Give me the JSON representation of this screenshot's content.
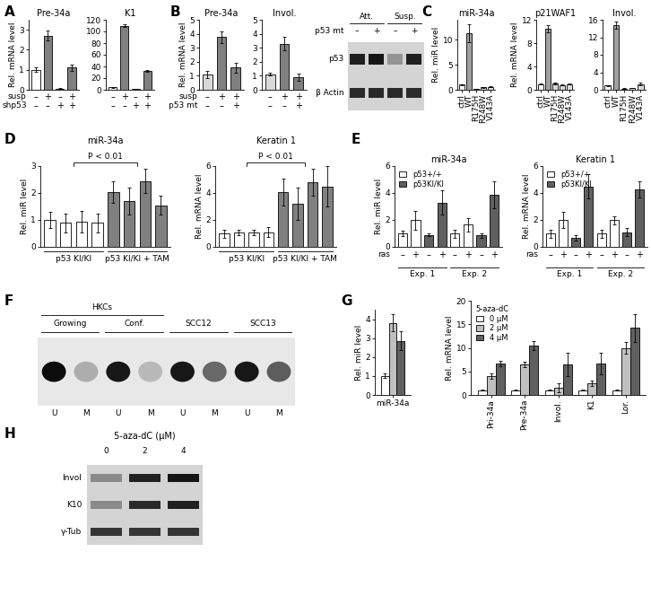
{
  "chart_data": [
    {
      "type": "bar",
      "panel": "A",
      "title": "Pre-34a",
      "ylabel": "Rel. mRNA level",
      "categories": [
        null,
        null,
        null,
        null
      ],
      "values": [
        1.0,
        2.7,
        0.05,
        1.1
      ],
      "errors": [
        0.1,
        0.25,
        0.02,
        0.15
      ],
      "colors": [
        "#ffffff",
        "#808080",
        "#ffffff",
        "#808080"
      ],
      "ylim": [
        0,
        3.5
      ],
      "yticks": [
        0,
        1,
        2,
        3
      ],
      "rows": [
        {
          "label": "susp",
          "signs": [
            "–",
            "+",
            "–",
            "+"
          ]
        },
        {
          "label": "shp53",
          "signs": [
            "–",
            "–",
            "+",
            "+"
          ]
        }
      ]
    },
    {
      "type": "bar",
      "title": "K1",
      "categories": [
        null,
        null,
        null,
        null
      ],
      "values": [
        4,
        110,
        2,
        32
      ],
      "errors": [
        0.5,
        3,
        0.3,
        1.5
      ],
      "colors": [
        "#ffffff",
        "#808080",
        "#ffffff",
        "#808080"
      ],
      "ylim": [
        0,
        120
      ],
      "yticks": [
        0,
        20,
        40,
        60,
        80,
        100,
        120
      ],
      "rows": [
        {
          "signs": [
            "–",
            "+",
            "–",
            "+"
          ]
        },
        {
          "signs": [
            "–",
            "–",
            "+",
            "+"
          ]
        }
      ]
    },
    {
      "type": "bar",
      "panel": "B",
      "title": "Pre-34a",
      "ylabel": "Rel. mRNA level",
      "categories": [
        null,
        null,
        null
      ],
      "values": [
        1.1,
        3.75,
        1.6
      ],
      "errors": [
        0.25,
        0.4,
        0.35
      ],
      "colors": [
        "#d9d9d9",
        "#808080",
        "#808080"
      ],
      "ylim": [
        0,
        5
      ],
      "yticks": [
        0,
        1,
        2,
        3,
        4,
        5
      ],
      "rows": [
        {
          "label": "susp",
          "signs": [
            "–",
            "+",
            "+"
          ]
        },
        {
          "label": "p53 mt",
          "signs": [
            "–",
            "–",
            "+"
          ]
        }
      ]
    },
    {
      "type": "bar",
      "title": "Invol.",
      "categories": [
        null,
        null,
        null
      ],
      "values": [
        1.1,
        3.3,
        0.9
      ],
      "errors": [
        0.1,
        0.5,
        0.25
      ],
      "colors": [
        "#d9d9d9",
        "#808080",
        "#808080"
      ],
      "ylim": [
        0,
        5
      ],
      "yticks": [
        0,
        1,
        2,
        3,
        4,
        5
      ],
      "rows": [
        {
          "signs": [
            "–",
            "+",
            "+"
          ]
        },
        {
          "signs": [
            "–",
            "–",
            "+"
          ]
        }
      ]
    },
    {
      "type": "blot",
      "headers": [
        {
          "labels": [
            "Att.",
            "Att.",
            "Susp.",
            "Susp."
          ]
        },
        {
          "label": "p53 mt",
          "labels": [
            "–",
            "+",
            "–",
            "+"
          ]
        }
      ],
      "bands": [
        {
          "label": "p53",
          "intensity": [
            0.85,
            0.9,
            0.3,
            0.85
          ]
        },
        {
          "label": "β Actin",
          "intensity": [
            0.8,
            0.8,
            0.8,
            0.8
          ]
        }
      ]
    },
    {
      "type": "bar",
      "panel": "C",
      "title": "miR-34a",
      "ylabel": "Rel. miR level",
      "categories": [
        "ctrl",
        "WT",
        "R175H",
        "R248W",
        "V143A"
      ],
      "values": [
        1.0,
        11.3,
        0.2,
        0.5,
        0.6
      ],
      "errors": [
        0.1,
        1.8,
        0.05,
        0.1,
        0.1
      ],
      "colors": [
        "#ffffff",
        "#a0a0a0",
        "#d9d9d9",
        "#d9d9d9",
        "#d9d9d9"
      ],
      "ylim": [
        0,
        14
      ],
      "yticks": [
        0,
        5,
        10
      ]
    },
    {
      "type": "bar",
      "title": "p21WAF1",
      "ylabel": "Rel. mRNA level",
      "categories": [
        "ctrl",
        "WT",
        "R175H",
        "R248W",
        "V143A"
      ],
      "values": [
        1.0,
        10.5,
        1.1,
        0.8,
        1.0
      ],
      "errors": [
        0.1,
        0.6,
        0.1,
        0.1,
        0.1
      ],
      "colors": [
        "#ffffff",
        "#a0a0a0",
        "#d9d9d9",
        "#d9d9d9",
        "#d9d9d9"
      ],
      "ylim": [
        0,
        12
      ],
      "yticks": [
        0,
        4,
        8,
        12
      ]
    },
    {
      "type": "bar",
      "title": "Invol.",
      "categories": [
        "ctrl",
        "WT",
        "R175H",
        "R248W",
        "V143A"
      ],
      "values": [
        1.0,
        14.7,
        0.3,
        0.4,
        1.3
      ],
      "errors": [
        0.1,
        0.8,
        0.05,
        0.05,
        0.3
      ],
      "colors": [
        "#ffffff",
        "#a0a0a0",
        "#d9d9d9",
        "#d9d9d9",
        "#d9d9d9"
      ],
      "ylim": [
        0,
        16
      ],
      "yticks": [
        0,
        4,
        8,
        12,
        16
      ]
    },
    {
      "type": "bar",
      "panel": "D",
      "title": "miR-34a",
      "ylabel": "Rel. miR level",
      "annotation": "P < 0.01",
      "categories": [
        null,
        null,
        null,
        null,
        null,
        null,
        null,
        null
      ],
      "values": [
        1.0,
        0.9,
        0.95,
        0.9,
        2.05,
        1.7,
        2.45,
        1.55
      ],
      "errors": [
        0.3,
        0.35,
        0.4,
        0.35,
        0.4,
        0.5,
        0.45,
        0.35
      ],
      "colors": [
        "#ffffff",
        "#ffffff",
        "#ffffff",
        "#ffffff",
        "#808080",
        "#808080",
        "#808080",
        "#808080"
      ],
      "ylim": [
        0,
        3
      ],
      "yticks": [
        0,
        1,
        2,
        3
      ],
      "groups": [
        "p53 KI/KI",
        "p53 KI/KI",
        "p53 KI/KI",
        "p53 KI/KI",
        "p53 KI/KI + TAM",
        "p53 KI/KI + TAM",
        "p53 KI/KI + TAM",
        "p53 KI/KI + TAM"
      ]
    },
    {
      "type": "bar",
      "title": "Keratin 1",
      "ylabel": "Rel. mRNA level",
      "annotation": "P < 0.01",
      "categories": [
        null,
        null,
        null,
        null,
        null,
        null,
        null,
        null
      ],
      "values": [
        1.0,
        1.1,
        1.05,
        1.1,
        4.1,
        3.2,
        4.8,
        4.5
      ],
      "errors": [
        0.3,
        0.2,
        0.2,
        0.35,
        1.0,
        1.2,
        1.0,
        1.5
      ],
      "colors": [
        "#ffffff",
        "#ffffff",
        "#ffffff",
        "#ffffff",
        "#808080",
        "#808080",
        "#808080",
        "#808080"
      ],
      "ylim": [
        0,
        6
      ],
      "yticks": [
        0,
        2,
        4,
        6
      ],
      "groups": [
        "p53 KI/KI",
        "p53 KI/KI",
        "p53 KI/KI",
        "p53 KI/KI",
        "p53 KI/KI + TAM",
        "p53 KI/KI + TAM",
        "p53 KI/KI + TAM",
        "p53 KI/KI + TAM"
      ]
    },
    {
      "type": "bar",
      "panel": "E",
      "title": "miR-34a",
      "ylabel": "Rel. miR level",
      "legend": "upper left",
      "categories": [
        null,
        null,
        null,
        null,
        null,
        null,
        null,
        null
      ],
      "series": [
        {
          "name": "p53+/+",
          "color": "#ffffff",
          "values": [
            1.0,
            2.0,
            null,
            null,
            1.0,
            1.65,
            null,
            null
          ],
          "errors": [
            0.2,
            0.7,
            null,
            null,
            0.3,
            0.5,
            null,
            null
          ]
        },
        {
          "name": "p53KI/KI",
          "color": "#606060",
          "values": [
            null,
            null,
            0.9,
            3.3,
            null,
            null,
            0.85,
            3.9
          ],
          "errors": [
            null,
            null,
            0.1,
            0.9,
            null,
            null,
            0.15,
            1.0
          ]
        }
      ],
      "ylim": [
        0,
        6
      ],
      "yticks": [
        0,
        2,
        4,
        6
      ],
      "rows": [
        {
          "label": "ras",
          "signs": [
            "–",
            "+",
            "–",
            "+",
            "–",
            "+",
            "–",
            "+"
          ]
        }
      ],
      "groups": [
        "Exp. 1",
        "Exp. 1",
        "Exp. 1",
        "Exp. 1",
        "Exp. 2",
        "Exp. 2",
        "Exp. 2",
        "Exp. 2"
      ]
    },
    {
      "type": "bar",
      "title": "Keratin 1",
      "ylabel": "Rel. mRNA level",
      "legend": "upper left",
      "categories": [
        null,
        null,
        null,
        null,
        null,
        null,
        null,
        null
      ],
      "series": [
        {
          "name": "p53+/+",
          "color": "#ffffff",
          "values": [
            1.0,
            2.0,
            null,
            null,
            1.0,
            2.0,
            null,
            null
          ],
          "errors": [
            0.3,
            0.6,
            null,
            null,
            0.3,
            0.3,
            null,
            null
          ]
        },
        {
          "name": "p53KI/KI",
          "color": "#606060",
          "values": [
            null,
            null,
            0.7,
            4.5,
            null,
            null,
            1.1,
            4.3
          ],
          "errors": [
            null,
            null,
            0.2,
            0.9,
            null,
            null,
            0.3,
            0.6
          ]
        }
      ],
      "ylim": [
        0,
        6
      ],
      "yticks": [
        0,
        2,
        4,
        6
      ],
      "rows": [
        {
          "label": "ras",
          "signs": [
            "–",
            "+",
            "–",
            "+",
            "–",
            "+",
            "–",
            "+"
          ]
        }
      ],
      "groups": [
        "Exp. 1",
        "Exp. 1",
        "Exp. 1",
        "Exp. 1",
        "Exp. 2",
        "Exp. 2",
        "Exp. 2",
        "Exp. 2"
      ]
    },
    {
      "type": "gel",
      "panel": "F",
      "headers": [
        {
          "labels": [
            "HKCs",
            "HKCs",
            "HKCs",
            "HKCs",
            null,
            null,
            null,
            null
          ]
        },
        {
          "labels": [
            "Growing",
            "Growing",
            "Conf.",
            "Conf.",
            "SCC12",
            "SCC12",
            "SCC13",
            "SCC13"
          ]
        }
      ],
      "bands": [
        {
          "intensity": [
            0.95,
            0.25,
            0.9,
            0.2,
            0.9,
            0.55,
            0.9,
            0.6
          ]
        }
      ],
      "footer": [
        "U",
        "M",
        "U",
        "M",
        "U",
        "M",
        "U",
        "M"
      ]
    },
    {
      "type": "bar",
      "panel": "G",
      "ylabel": "Rel. miR level",
      "categories": [
        "miR-34a"
      ],
      "series": [
        {
          "color": "#ffffff",
          "values": [
            1.0
          ],
          "errors": [
            0.12
          ]
        },
        {
          "color": "#c0c0c0",
          "values": [
            3.8
          ],
          "errors": [
            0.45
          ]
        },
        {
          "color": "#606060",
          "values": [
            2.85
          ],
          "errors": [
            0.5
          ]
        }
      ],
      "ylim": [
        0,
        4.5
      ],
      "yticks": [
        0,
        1,
        2,
        3,
        4
      ]
    },
    {
      "type": "bar",
      "ylabel": "Rel. mRNA level",
      "legend": "upper left",
      "legend_title": "5-aza-dC",
      "categories": [
        "Pri-34a",
        "Pre-34a",
        "Invol.",
        "K1",
        "Lor."
      ],
      "series": [
        {
          "name": "0 μM",
          "color": "#ffffff",
          "values": [
            1.0,
            1.0,
            1.0,
            1.0,
            1.0
          ],
          "errors": [
            0.1,
            0.1,
            0.1,
            0.1,
            0.1
          ]
        },
        {
          "name": "2 μM",
          "color": "#c0c0c0",
          "values": [
            4.0,
            6.5,
            1.5,
            2.5,
            10.0
          ],
          "errors": [
            0.5,
            0.6,
            1.0,
            0.5,
            1.2
          ]
        },
        {
          "name": "4 μM",
          "color": "#606060",
          "values": [
            6.7,
            10.5,
            6.5,
            6.7,
            14.2
          ],
          "errors": [
            0.6,
            0.9,
            2.5,
            2.3,
            3.0
          ]
        }
      ],
      "ylim": [
        0,
        20
      ],
      "yticks": [
        0,
        5,
        10,
        15,
        20
      ]
    },
    {
      "type": "blot",
      "panel": "H",
      "title": "5-aza-dC (μM)",
      "headers": [
        {
          "labels": [
            "0",
            "2",
            "4"
          ]
        }
      ],
      "bands": [
        {
          "label": "Invol",
          "intensity": [
            0.35,
            0.85,
            0.9
          ]
        },
        {
          "label": "K10",
          "intensity": [
            0.35,
            0.8,
            0.85
          ]
        },
        {
          "label": "γ-Tub",
          "intensity": [
            0.75,
            0.75,
            0.75
          ]
        }
      ]
    }
  ]
}
